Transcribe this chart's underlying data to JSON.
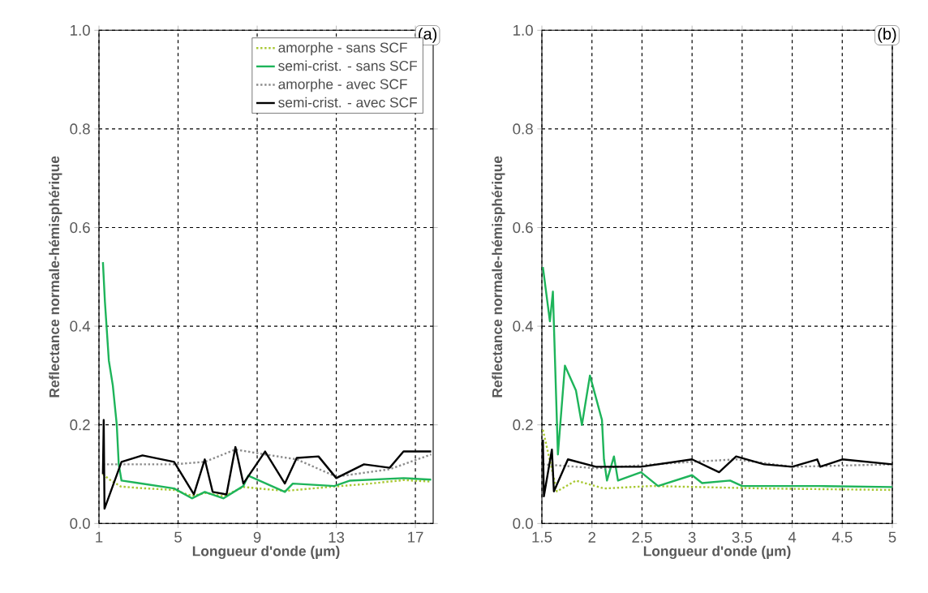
{
  "chart_data": [
    {
      "type": "line",
      "xlabel": "Longueur d'onde (µm)",
      "ylabel": "Reflectance normale-hémisphérique",
      "annotations": [
        "(a)"
      ],
      "xlim": [
        1,
        17.9
      ],
      "ylim": [
        0,
        1
      ],
      "xticks": [
        1,
        5,
        9,
        13,
        17
      ],
      "yticks": [
        {
          "value": 0,
          "label": "0.0"
        },
        {
          "value": 0.2,
          "label": "0.2"
        },
        {
          "value": 0.4,
          "label": "0.4"
        },
        {
          "value": 0.6,
          "label": "0.6"
        },
        {
          "value": 0.8,
          "label": "0.8"
        },
        {
          "value": 1,
          "label": "1.0"
        }
      ],
      "grid": true,
      "legend": "top right",
      "series": [
        {
          "name": "amorphe - sans SCF",
          "color": "#a8c832",
          "line_style": "dotted",
          "x": [
            1.2,
            1.5,
            2.1,
            3,
            4.8,
            5.7,
            6.4,
            7.3,
            8.3,
            10.4,
            12.9,
            14.5,
            16.4,
            17.8
          ],
          "values": [
            0.1,
            0.09,
            0.075,
            0.072,
            0.068,
            0.056,
            0.062,
            0.055,
            0.074,
            0.066,
            0.075,
            0.08,
            0.088,
            0.085
          ]
        },
        {
          "name": "semi-crist. - sans SCF",
          "color": "#1eb45a",
          "line_style": "solid",
          "x": [
            1.2,
            1.3,
            1.5,
            1.7,
            1.9,
            2.0,
            2.14,
            3,
            4.8,
            5.7,
            6.35,
            7.3,
            8.3,
            8.55,
            10.4,
            10.8,
            12.9,
            13.7,
            16.4,
            17.8
          ],
          "values": [
            0.53,
            0.45,
            0.33,
            0.28,
            0.2,
            0.12,
            0.087,
            0.082,
            0.071,
            0.051,
            0.064,
            0.051,
            0.076,
            0.097,
            0.064,
            0.081,
            0.076,
            0.087,
            0.092,
            0.089
          ]
        },
        {
          "name": "amorphe - avec SCF",
          "color": "#8c8c8c",
          "line_style": "dotted",
          "x": [
            1.2,
            2.1,
            4.8,
            6.35,
            7.9,
            9.4,
            11,
            13,
            15.7,
            17.8
          ],
          "values": [
            0.12,
            0.12,
            0.12,
            0.125,
            0.15,
            0.14,
            0.13,
            0.095,
            0.11,
            0.14
          ]
        },
        {
          "name": "semi-crist. - avec SCF",
          "color": "#000000",
          "line_style": "solid",
          "x": [
            1.2,
            1.24,
            1.28,
            2.14,
            3.2,
            4.8,
            5.8,
            6.35,
            6.75,
            7.45,
            7.9,
            8.3,
            9.4,
            10.4,
            11,
            12.1,
            13,
            14.4,
            15.7,
            16.4,
            17.8
          ],
          "values": [
            0.1,
            0.21,
            0.03,
            0.125,
            0.138,
            0.125,
            0.059,
            0.13,
            0.064,
            0.059,
            0.155,
            0.081,
            0.146,
            0.081,
            0.133,
            0.136,
            0.092,
            0.12,
            0.113,
            0.146,
            0.146
          ]
        }
      ]
    },
    {
      "type": "line",
      "xlabel": "Longueur d'onde (µm)",
      "ylabel": "Reflectance normale-hémisphérique",
      "annotations": [
        "(b)"
      ],
      "xlim": [
        1.5,
        5
      ],
      "ylim": [
        0,
        1
      ],
      "xticks": [
        1.5,
        2,
        2.5,
        3,
        3.5,
        4,
        4.5,
        5
      ],
      "yticks": [
        {
          "value": 0,
          "label": "0.0"
        },
        {
          "value": 0.2,
          "label": "0.2"
        },
        {
          "value": 0.4,
          "label": "0.4"
        },
        {
          "value": 0.6,
          "label": "0.6"
        },
        {
          "value": 0.8,
          "label": "0.8"
        },
        {
          "value": 1,
          "label": "1.0"
        }
      ],
      "grid": true,
      "series": [
        {
          "color": "#a8c832",
          "line_style": "dotted",
          "x": [
            1.51,
            1.65,
            1.84,
            2.12,
            2.6,
            3.72,
            5
          ],
          "values": [
            0.19,
            0.065,
            0.087,
            0.071,
            0.076,
            0.071,
            0.068
          ]
        },
        {
          "color": "#1eb45a",
          "line_style": "solid",
          "x": [
            1.51,
            1.58,
            1.61,
            1.66,
            1.73,
            1.84,
            1.9,
            1.98,
            2.1,
            2.12,
            2.15,
            2.22,
            2.26,
            2.49,
            2.66,
            3.0,
            3.1,
            3.38,
            3.5,
            4.28,
            5
          ],
          "values": [
            0.52,
            0.41,
            0.47,
            0.14,
            0.32,
            0.27,
            0.2,
            0.3,
            0.21,
            0.13,
            0.087,
            0.136,
            0.087,
            0.104,
            0.076,
            0.098,
            0.082,
            0.087,
            0.076,
            0.076,
            0.074
          ]
        },
        {
          "color": "#8c8c8c",
          "line_style": "dotted",
          "x": [
            1.51,
            2.04,
            3.0,
            3.44,
            4.0,
            5
          ],
          "values": [
            0.12,
            0.112,
            0.125,
            0.13,
            0.115,
            0.12
          ]
        },
        {
          "color": "#000000",
          "line_style": "solid",
          "x": [
            1.51,
            1.52,
            1.6,
            1.62,
            1.76,
            2.04,
            2.49,
            3.0,
            3.27,
            3.44,
            3.72,
            4.0,
            4.25,
            4.28,
            4.5,
            5
          ],
          "values": [
            0.17,
            0.055,
            0.15,
            0.065,
            0.13,
            0.115,
            0.115,
            0.13,
            0.104,
            0.136,
            0.12,
            0.115,
            0.13,
            0.115,
            0.13,
            0.12
          ]
        }
      ]
    }
  ]
}
